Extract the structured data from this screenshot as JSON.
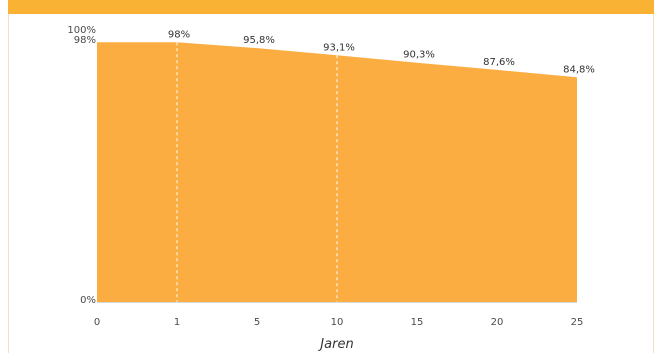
{
  "header": {
    "title": ""
  },
  "chart_data": {
    "type": "area",
    "x": [
      0,
      1,
      5,
      10,
      15,
      20,
      25
    ],
    "values": [
      98,
      98,
      95.8,
      93.1,
      90.3,
      87.6,
      84.8
    ],
    "data_labels": [
      "",
      "98%",
      "95,8%",
      "93,1%",
      "90,3%",
      "87,6%",
      "84,8%"
    ],
    "xlabel": "Jaren",
    "ylabel": "",
    "x_ticks": [
      "0",
      "1",
      "5",
      "10",
      "15",
      "20",
      "25"
    ],
    "y_ticks": [
      {
        "value": 100,
        "label": "100%"
      },
      {
        "value": 98,
        "label": "98%"
      },
      {
        "value": 0,
        "label": "0%"
      }
    ],
    "xlim": [
      0,
      25
    ],
    "ylim": [
      0,
      100
    ],
    "fill_color": "#fbad41",
    "header_color": "#f9b233",
    "dashed_lines_at": [
      1,
      10
    ],
    "grid": false
  }
}
